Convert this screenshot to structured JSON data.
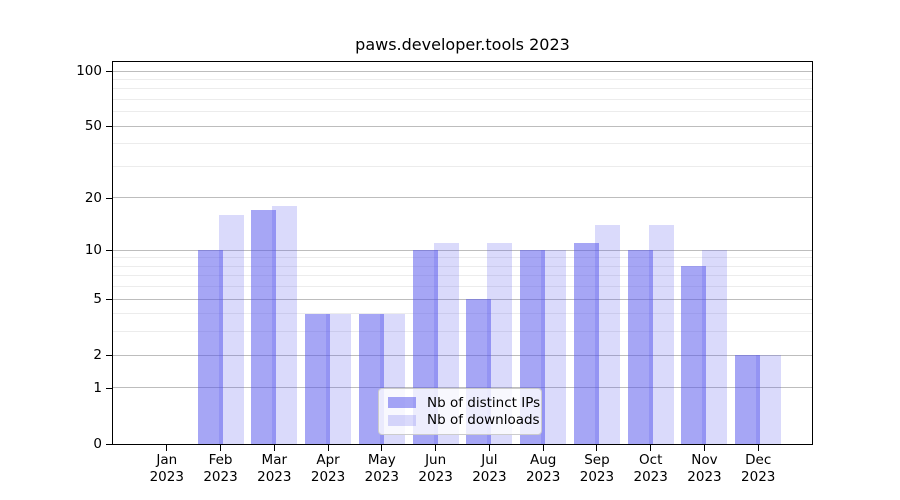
{
  "chart_data": {
    "type": "bar",
    "title": "paws.developer.tools 2023",
    "categories": [
      "Jan 2023",
      "Feb 2023",
      "Mar 2023",
      "Apr 2023",
      "May 2023",
      "Jun 2023",
      "Jul 2023",
      "Aug 2023",
      "Sep 2023",
      "Oct 2023",
      "Nov 2023",
      "Dec 2023"
    ],
    "series": [
      {
        "name": "Nb of distinct IPs",
        "color": "rgba(85,85,235,0.52)",
        "values": [
          0,
          10,
          17,
          4,
          4,
          10,
          5,
          10,
          11,
          10,
          8,
          2
        ]
      },
      {
        "name": "Nb of downloads",
        "color": "rgba(85,85,235,0.22)",
        "values": [
          0,
          16,
          18,
          4,
          4,
          11,
          11,
          10,
          14,
          14,
          10,
          2
        ]
      }
    ],
    "xlabel": "",
    "ylabel": "",
    "yscale": "log10(1+x)",
    "ylim": [
      0,
      112
    ],
    "yticks": [
      0,
      1,
      2,
      5,
      10,
      20,
      50,
      100
    ],
    "yticks_minor": [
      3,
      4,
      6,
      7,
      8,
      9,
      30,
      40,
      60,
      70,
      80,
      90
    ],
    "grid": "horizontal",
    "legend_position": "bottom-center"
  },
  "colors": {
    "background": "#ffffff",
    "axis": "#000000",
    "major_grid": "#bdbdbd",
    "minor_grid": "#ececec",
    "text": "#000000",
    "legend_border": "#cccccc",
    "legend_background": "rgba(255,255,255,0.8)"
  }
}
